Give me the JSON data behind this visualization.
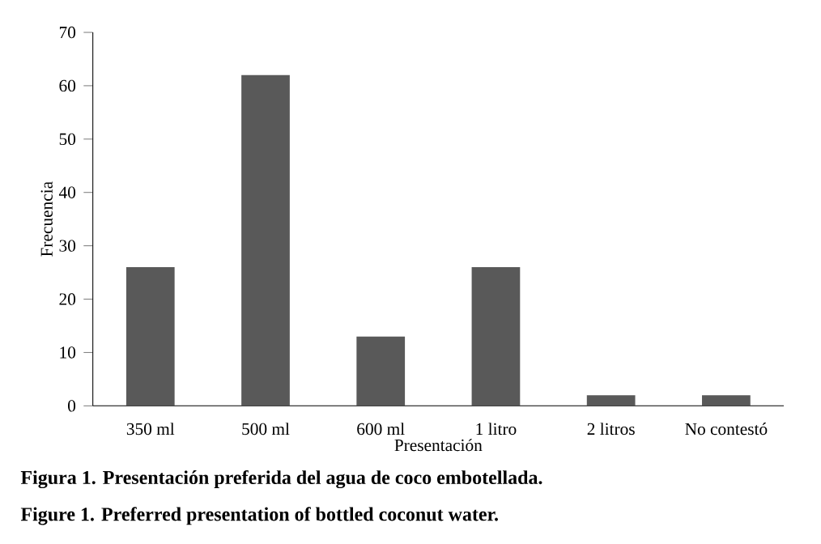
{
  "chart_data": {
    "type": "bar",
    "xlabel": "Presentación",
    "ylabel": "Frecuencia",
    "categories": [
      "350 ml",
      "500 ml",
      "600 ml",
      "1 litro",
      "2 litros",
      "No contestó"
    ],
    "values": [
      26,
      62,
      13,
      26,
      2,
      2
    ],
    "color": "#595959",
    "ylim": [
      0,
      70
    ],
    "yticks": [
      0,
      10,
      20,
      30,
      40,
      50,
      60,
      70
    ],
    "grid": false,
    "annotations": [
      "Figura 1. Presentación preferida del agua de coco embotellada.",
      "Figure 1. Preferred presentation of bottled coconut water."
    ]
  }
}
